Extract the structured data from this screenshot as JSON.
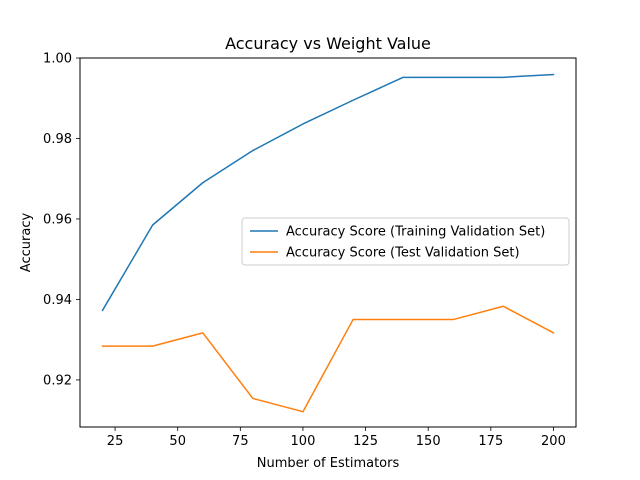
{
  "chart_data": {
    "type": "line",
    "title": "Accuracy vs Weight Value",
    "xlabel": "Number of Estimators",
    "ylabel": "Accuracy",
    "x": [
      20,
      40,
      60,
      80,
      100,
      120,
      140,
      160,
      180,
      200
    ],
    "xlim": [
      11,
      209
    ],
    "ylim": [
      0.9083,
      1.0
    ],
    "xticks": [
      25,
      50,
      75,
      100,
      125,
      150,
      175,
      200
    ],
    "xtick_labels": [
      "25",
      "50",
      "75",
      "100",
      "125",
      "150",
      "175",
      "200"
    ],
    "yticks": [
      0.92,
      0.94,
      0.96,
      0.98,
      1.0
    ],
    "ytick_labels": [
      "0.92",
      "0.94",
      "0.96",
      "0.98",
      "1.00"
    ],
    "grid": false,
    "legend_position": "center-right",
    "series": [
      {
        "name": "Accuracy Score (Training Validation Set)",
        "color": "#1f77b4",
        "values": [
          0.9373,
          0.9585,
          0.969,
          0.977,
          0.9836,
          0.9895,
          0.9952,
          0.9952,
          0.9952,
          0.9959
        ]
      },
      {
        "name": "Accuracy Score (Test Validation Set)",
        "color": "#ff7f0e",
        "values": [
          0.9284,
          0.9284,
          0.9317,
          0.9154,
          0.9121,
          0.935,
          0.935,
          0.935,
          0.9383,
          0.9317
        ]
      }
    ]
  }
}
